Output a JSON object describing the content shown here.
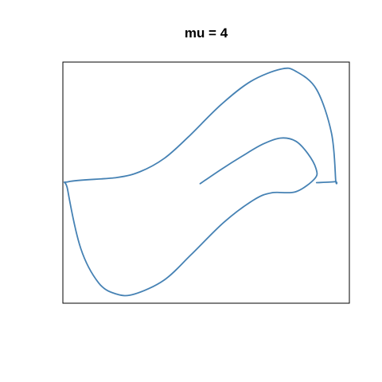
{
  "chart_data": {
    "type": "line",
    "title": "mu = 4",
    "xlabel": "",
    "ylabel": "",
    "grid": false,
    "axes_visible": false,
    "xlim": [
      -2.3,
      2.5
    ],
    "ylim": [
      -5.9,
      6.0
    ],
    "series": [
      {
        "color": "#4682b4",
        "points": [
          [
            0.0,
            0.0
          ],
          [
            0.35,
            0.7
          ],
          [
            0.7,
            1.35
          ],
          [
            1.05,
            1.95
          ],
          [
            1.35,
            2.25
          ],
          [
            1.6,
            2.1
          ],
          [
            1.8,
            1.5
          ],
          [
            1.94,
            0.75
          ],
          [
            1.92,
            0.25
          ],
          [
            1.6,
            -0.4
          ],
          [
            1.2,
            -0.45
          ],
          [
            0.9,
            -0.8
          ],
          [
            0.4,
            -1.9
          ],
          [
            -0.15,
            -3.5
          ],
          [
            -0.6,
            -4.75
          ],
          [
            -1.1,
            -5.45
          ],
          [
            -1.4,
            -5.45
          ],
          [
            -1.7,
            -4.9
          ],
          [
            -2.0,
            -3.2
          ],
          [
            -2.22,
            -0.3
          ],
          [
            -2.2,
            0.1
          ],
          [
            -1.4,
            0.3
          ],
          [
            -1.0,
            0.6
          ],
          [
            -0.6,
            1.25
          ],
          [
            -0.2,
            2.3
          ],
          [
            0.35,
            3.9
          ],
          [
            0.85,
            5.05
          ],
          [
            1.35,
            5.65
          ],
          [
            1.6,
            5.55
          ],
          [
            1.95,
            4.65
          ],
          [
            2.2,
            2.5
          ],
          [
            2.27,
            0.2
          ],
          [
            2.26,
            0.1
          ],
          [
            1.95,
            0.05
          ]
        ]
      }
    ]
  }
}
